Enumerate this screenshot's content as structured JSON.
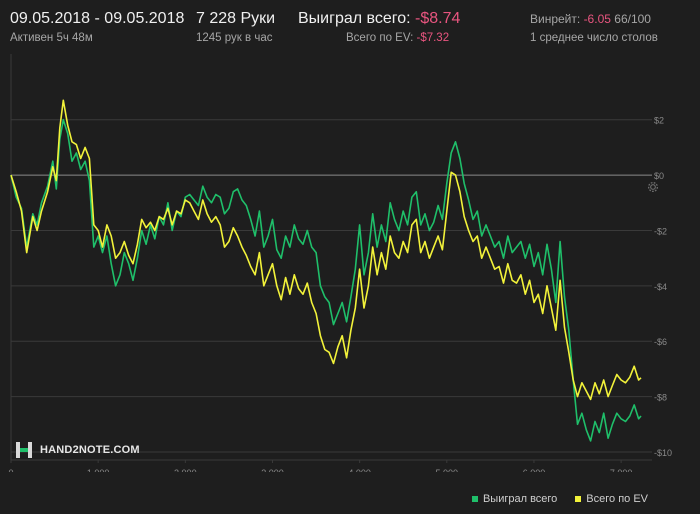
{
  "header": {
    "date_range": "09.05.2018 - 09.05.2018",
    "active": "Активен 5ч 48м",
    "hands": "7 228 Руки",
    "hands_per_hour": "1245 рук в час",
    "won_label": "Выиграл всего:",
    "won_value": "-$8.74",
    "ev_label": "Всего по EV:",
    "ev_value": "-$7.32",
    "winrate_label": "Винрейт:",
    "winrate_value": "-6.05",
    "winrate_rest": "66/100",
    "avg_tables": "1 среднее число столов"
  },
  "logo": {
    "text": "HAND2NOTE.COM"
  },
  "colors": {
    "won": "#1fbf6a",
    "ev": "#f2f23a",
    "grid": "#3a3a3a",
    "zero": "#8a8a8a",
    "axis_text": "#8a8a8a"
  },
  "icons": {
    "settings": "gear-icon",
    "logo": "hand2note-logo-icon"
  },
  "chart_data": {
    "type": "line",
    "xlim": [
      0,
      7228
    ],
    "ylim": [
      -10,
      3
    ],
    "x_ticks": [
      0,
      1000,
      2000,
      3000,
      4000,
      5000,
      6000,
      7000
    ],
    "x_tick_labels": [
      "0",
      "1 000",
      "2 000",
      "3 000",
      "4 000",
      "5 000",
      "6 000",
      "7 000"
    ],
    "y_ticks": [
      2,
      0,
      -2,
      -4,
      -6,
      -8,
      -10
    ],
    "y_tick_labels": [
      "$2",
      "$0",
      "-$2",
      "-$4",
      "-$6",
      "-$8",
      "-$10"
    ],
    "grid": true,
    "legend_position": "bottom-right",
    "series": [
      {
        "name": "Выиграл всего",
        "color": "#1fbf6a",
        "x": [
          0,
          60,
          120,
          180,
          250,
          300,
          350,
          420,
          480,
          520,
          560,
          600,
          650,
          700,
          750,
          800,
          850,
          900,
          950,
          1000,
          1050,
          1100,
          1150,
          1200,
          1250,
          1300,
          1350,
          1400,
          1450,
          1500,
          1550,
          1600,
          1650,
          1700,
          1750,
          1800,
          1850,
          1900,
          1950,
          2000,
          2050,
          2100,
          2150,
          2200,
          2250,
          2300,
          2350,
          2400,
          2450,
          2500,
          2550,
          2600,
          2650,
          2700,
          2750,
          2800,
          2850,
          2900,
          2950,
          3000,
          3050,
          3100,
          3150,
          3200,
          3250,
          3300,
          3350,
          3400,
          3450,
          3500,
          3550,
          3600,
          3650,
          3700,
          3750,
          3800,
          3850,
          3900,
          3950,
          4000,
          4050,
          4100,
          4150,
          4200,
          4250,
          4300,
          4350,
          4400,
          4450,
          4500,
          4550,
          4600,
          4650,
          4700,
          4750,
          4800,
          4850,
          4900,
          4950,
          5000,
          5050,
          5100,
          5150,
          5200,
          5250,
          5300,
          5350,
          5400,
          5450,
          5500,
          5550,
          5600,
          5650,
          5700,
          5750,
          5800,
          5850,
          5900,
          5950,
          6000,
          6050,
          6100,
          6150,
          6200,
          6250,
          6300,
          6350,
          6400,
          6450,
          6500,
          6550,
          6600,
          6650,
          6700,
          6750,
          6800,
          6850,
          6900,
          6950,
          7000,
          7050,
          7100,
          7150,
          7200,
          7228
        ],
        "values": [
          0,
          -0.8,
          -1.2,
          -2.6,
          -1.4,
          -1.8,
          -1.0,
          -0.4,
          0.5,
          -0.5,
          1.3,
          2.0,
          1.5,
          0.5,
          0.8,
          0.2,
          0.5,
          -0.2,
          -2.6,
          -2.2,
          -2.8,
          -2.2,
          -3.2,
          -4.0,
          -3.6,
          -2.8,
          -3.2,
          -3.8,
          -3.0,
          -2.0,
          -2.5,
          -1.8,
          -2.3,
          -1.5,
          -1.8,
          -1.0,
          -2.0,
          -1.3,
          -1.5,
          -0.8,
          -0.7,
          -0.9,
          -1.1,
          -0.4,
          -0.8,
          -1.0,
          -0.7,
          -0.8,
          -1.4,
          -1.2,
          -0.6,
          -0.5,
          -0.9,
          -1.1,
          -1.6,
          -2.2,
          -1.3,
          -2.6,
          -2.2,
          -1.6,
          -2.7,
          -3.0,
          -2.2,
          -2.6,
          -1.8,
          -2.3,
          -2.5,
          -2.0,
          -2.6,
          -2.8,
          -4.0,
          -4.4,
          -4.6,
          -5.4,
          -5.0,
          -4.6,
          -5.3,
          -4.4,
          -3.4,
          -1.8,
          -3.6,
          -2.8,
          -1.4,
          -2.6,
          -1.8,
          -2.4,
          -1.0,
          -1.6,
          -2.0,
          -1.3,
          -1.8,
          -0.8,
          -0.6,
          -1.8,
          -1.4,
          -2.0,
          -1.7,
          -1.1,
          -1.6,
          -0.3,
          0.8,
          1.2,
          0.6,
          -0.3,
          -0.9,
          -1.6,
          -1.3,
          -2.2,
          -1.8,
          -2.2,
          -2.6,
          -2.4,
          -3.0,
          -2.2,
          -2.8,
          -2.6,
          -2.4,
          -3.0,
          -2.5,
          -3.3,
          -2.8,
          -3.6,
          -2.5,
          -3.4,
          -4.6,
          -2.4,
          -4.4,
          -5.6,
          -7.4,
          -9.0,
          -8.6,
          -9.2,
          -9.6,
          -8.9,
          -9.3,
          -8.6,
          -9.5,
          -9.0,
          -8.6,
          -8.8,
          -8.9,
          -8.7,
          -8.3,
          -8.8,
          -8.7
        ],
        "last_value": -8.74
      },
      {
        "name": "Всего по EV",
        "color": "#f2f23a",
        "x": [
          0,
          60,
          120,
          180,
          250,
          300,
          350,
          420,
          480,
          520,
          560,
          600,
          650,
          700,
          750,
          800,
          850,
          900,
          950,
          1000,
          1050,
          1100,
          1150,
          1200,
          1250,
          1300,
          1350,
          1400,
          1450,
          1500,
          1550,
          1600,
          1650,
          1700,
          1750,
          1800,
          1850,
          1900,
          1950,
          2000,
          2050,
          2100,
          2150,
          2200,
          2250,
          2300,
          2350,
          2400,
          2450,
          2500,
          2550,
          2600,
          2650,
          2700,
          2750,
          2800,
          2850,
          2900,
          2950,
          3000,
          3050,
          3100,
          3150,
          3200,
          3250,
          3300,
          3350,
          3400,
          3450,
          3500,
          3550,
          3600,
          3650,
          3700,
          3750,
          3800,
          3850,
          3900,
          3950,
          4000,
          4050,
          4100,
          4150,
          4200,
          4250,
          4300,
          4350,
          4400,
          4450,
          4500,
          4550,
          4600,
          4650,
          4700,
          4750,
          4800,
          4850,
          4900,
          4950,
          5000,
          5050,
          5100,
          5150,
          5200,
          5250,
          5300,
          5350,
          5400,
          5450,
          5500,
          5550,
          5600,
          5650,
          5700,
          5750,
          5800,
          5850,
          5900,
          5950,
          6000,
          6050,
          6100,
          6150,
          6200,
          6250,
          6300,
          6350,
          6400,
          6450,
          6500,
          6550,
          6600,
          6650,
          6700,
          6750,
          6800,
          6850,
          6900,
          6950,
          7000,
          7050,
          7100,
          7150,
          7200,
          7228
        ],
        "values": [
          0,
          -0.6,
          -1.3,
          -2.8,
          -1.5,
          -2.0,
          -1.3,
          -0.6,
          0.3,
          -0.2,
          1.7,
          2.7,
          1.8,
          1.2,
          1.1,
          0.6,
          1.0,
          0.6,
          -1.8,
          -2.0,
          -2.6,
          -1.8,
          -2.2,
          -3.0,
          -2.8,
          -2.4,
          -2.9,
          -3.2,
          -2.5,
          -1.6,
          -1.9,
          -1.7,
          -2.0,
          -1.5,
          -1.6,
          -1.2,
          -1.8,
          -1.3,
          -1.4,
          -0.9,
          -1.0,
          -1.3,
          -1.6,
          -0.9,
          -1.4,
          -1.7,
          -1.5,
          -1.8,
          -2.6,
          -2.4,
          -1.9,
          -2.2,
          -2.6,
          -2.9,
          -3.3,
          -3.6,
          -2.8,
          -4.0,
          -3.6,
          -3.2,
          -4.0,
          -4.5,
          -3.7,
          -4.3,
          -3.6,
          -4.1,
          -4.3,
          -3.9,
          -4.6,
          -5.0,
          -5.8,
          -6.3,
          -6.4,
          -6.8,
          -6.2,
          -5.8,
          -6.6,
          -5.6,
          -4.8,
          -3.4,
          -4.8,
          -4.0,
          -2.6,
          -3.6,
          -2.8,
          -3.4,
          -2.2,
          -2.8,
          -3.0,
          -2.4,
          -2.8,
          -1.8,
          -1.6,
          -2.8,
          -2.4,
          -3.0,
          -2.6,
          -2.2,
          -2.7,
          -1.3,
          0.1,
          0.0,
          -0.6,
          -1.5,
          -2.0,
          -2.4,
          -2.2,
          -3.0,
          -2.6,
          -3.0,
          -3.4,
          -3.3,
          -3.9,
          -3.2,
          -3.8,
          -3.9,
          -3.6,
          -4.3,
          -3.8,
          -4.6,
          -4.3,
          -5.0,
          -4.0,
          -4.8,
          -5.6,
          -3.8,
          -5.5,
          -6.4,
          -7.4,
          -8.0,
          -7.5,
          -7.8,
          -8.1,
          -7.5,
          -7.9,
          -7.4,
          -8.0,
          -7.6,
          -7.2,
          -7.4,
          -7.5,
          -7.3,
          -6.9,
          -7.4,
          -7.32
        ],
        "last_value": -7.32
      }
    ]
  },
  "legend": [
    {
      "label": "Выиграл всего",
      "color": "#1fbf6a"
    },
    {
      "label": "Всего по EV",
      "color": "#f2f23a"
    }
  ]
}
